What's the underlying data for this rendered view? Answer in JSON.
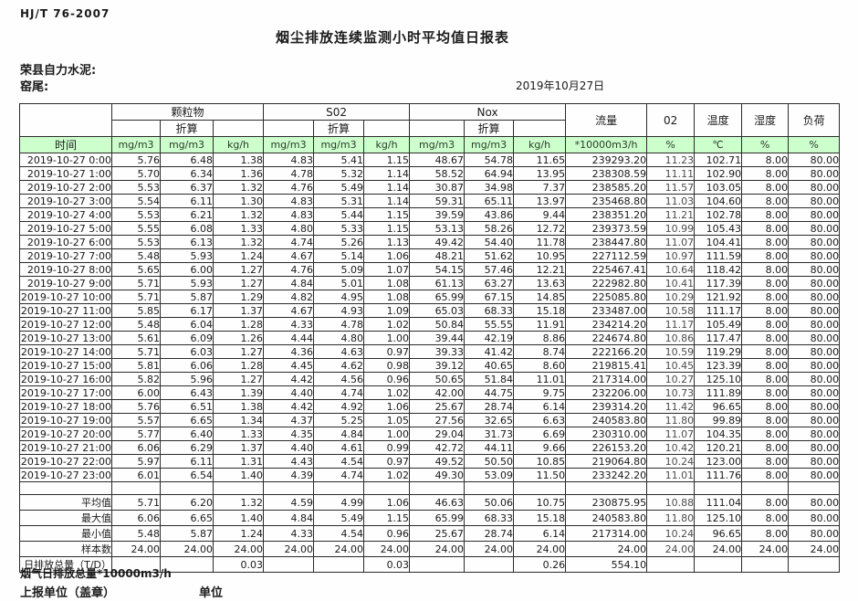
{
  "doc": {
    "standard": "HJ/T  76-2007",
    "title": "烟尘排放连续监测小时平均值日报表",
    "company": "荣县自力水泥:",
    "location": "窑尾:",
    "date": "2019年10月27日"
  },
  "table": {
    "header": {
      "time_label": "时间",
      "group_pm": "颗粒物",
      "group_so2": "S02",
      "group_nox": "Nox",
      "zhesuan_pm": "折算",
      "zhesuan_so2": "折算",
      "zhesuan_nox": "折算",
      "flow_label": "流量",
      "o2_label": "02",
      "temp_label": "温度",
      "humidity_label": "湿度",
      "load_label": "负荷",
      "units": [
        "mg/m3",
        "mg/m3",
        "kg/h",
        "mg/m3",
        "mg/m3",
        "kg/h",
        "mg/m3",
        "mg/m3",
        "kg/h",
        "*10000m3/h",
        "%",
        "℃",
        "%",
        "%"
      ]
    },
    "rows": [
      {
        "time": "2019-10-27  0:00",
        "values": [
          "5.76",
          "6.48",
          "1.38",
          "4.83",
          "5.41",
          "1.15",
          "48.67",
          "54.78",
          "11.65",
          "239293.20",
          "11.23",
          "102.71",
          "8.00",
          "80.00"
        ]
      },
      {
        "time": "2019-10-27  1:00",
        "values": [
          "5.70",
          "6.34",
          "1.36",
          "4.78",
          "5.32",
          "1.14",
          "58.52",
          "64.94",
          "13.95",
          "238308.59",
          "11.11",
          "102.90",
          "8.00",
          "80.00"
        ]
      },
      {
        "time": "2019-10-27  2:00",
        "values": [
          "5.53",
          "6.37",
          "1.32",
          "4.76",
          "5.49",
          "1.14",
          "30.87",
          "34.98",
          "7.37",
          "238585.20",
          "11.57",
          "103.05",
          "8.00",
          "80.00"
        ]
      },
      {
        "time": "2019-10-27  3:00",
        "values": [
          "5.54",
          "6.11",
          "1.30",
          "4.83",
          "5.31",
          "1.14",
          "59.31",
          "65.11",
          "13.97",
          "235468.80",
          "11.03",
          "104.60",
          "8.00",
          "80.00"
        ]
      },
      {
        "time": "2019-10-27  4:00",
        "values": [
          "5.53",
          "6.21",
          "1.32",
          "4.83",
          "5.44",
          "1.15",
          "39.59",
          "43.86",
          "9.44",
          "238351.20",
          "11.21",
          "102.78",
          "8.00",
          "80.00"
        ]
      },
      {
        "time": "2019-10-27  5:00",
        "values": [
          "5.55",
          "6.08",
          "1.33",
          "4.80",
          "5.33",
          "1.15",
          "53.13",
          "58.26",
          "12.72",
          "239373.59",
          "10.99",
          "105.43",
          "8.00",
          "80.00"
        ]
      },
      {
        "time": "2019-10-27  6:00",
        "values": [
          "5.53",
          "6.13",
          "1.32",
          "4.74",
          "5.26",
          "1.13",
          "49.42",
          "54.40",
          "11.78",
          "238447.80",
          "11.07",
          "104.41",
          "8.00",
          "80.00"
        ]
      },
      {
        "time": "2019-10-27  7:00",
        "values": [
          "5.48",
          "5.93",
          "1.24",
          "4.67",
          "5.14",
          "1.06",
          "48.21",
          "51.62",
          "10.95",
          "227112.59",
          "10.97",
          "111.59",
          "8.00",
          "80.00"
        ]
      },
      {
        "time": "2019-10-27  8:00",
        "values": [
          "5.65",
          "6.00",
          "1.27",
          "4.76",
          "5.09",
          "1.07",
          "54.15",
          "57.46",
          "12.21",
          "225467.41",
          "10.64",
          "118.42",
          "8.00",
          "80.00"
        ]
      },
      {
        "time": "2019-10-27  9:00",
        "values": [
          "5.71",
          "5.93",
          "1.27",
          "4.84",
          "5.01",
          "1.08",
          "61.13",
          "63.27",
          "13.63",
          "222982.80",
          "10.41",
          "117.39",
          "8.00",
          "80.00"
        ]
      },
      {
        "time": "2019-10-27 10:00",
        "values": [
          "5.71",
          "5.87",
          "1.29",
          "4.82",
          "4.95",
          "1.08",
          "65.99",
          "67.15",
          "14.85",
          "225085.80",
          "10.29",
          "121.92",
          "8.00",
          "80.00"
        ]
      },
      {
        "time": "2019-10-27 11:00",
        "values": [
          "5.85",
          "6.17",
          "1.37",
          "4.67",
          "4.93",
          "1.09",
          "65.03",
          "68.33",
          "15.18",
          "233487.00",
          "10.58",
          "111.17",
          "8.00",
          "80.00"
        ]
      },
      {
        "time": "2019-10-27 12:00",
        "values": [
          "5.48",
          "6.04",
          "1.28",
          "4.33",
          "4.78",
          "1.02",
          "50.84",
          "55.55",
          "11.91",
          "234214.20",
          "11.17",
          "105.49",
          "8.00",
          "80.00"
        ]
      },
      {
        "time": "2019-10-27 13:00",
        "values": [
          "5.61",
          "6.09",
          "1.26",
          "4.44",
          "4.80",
          "1.00",
          "39.44",
          "42.19",
          "8.86",
          "224674.80",
          "10.86",
          "117.47",
          "8.00",
          "80.00"
        ]
      },
      {
        "time": "2019-10-27 14:00",
        "values": [
          "5.71",
          "6.03",
          "1.27",
          "4.36",
          "4.63",
          "0.97",
          "39.33",
          "41.42",
          "8.74",
          "222166.20",
          "10.59",
          "119.29",
          "8.00",
          "80.00"
        ]
      },
      {
        "time": "2019-10-27 15:00",
        "values": [
          "5.81",
          "6.06",
          "1.28",
          "4.45",
          "4.62",
          "0.98",
          "39.12",
          "40.65",
          "8.60",
          "219815.41",
          "10.45",
          "123.39",
          "8.00",
          "80.00"
        ]
      },
      {
        "time": "2019-10-27 16:00",
        "values": [
          "5.82",
          "5.96",
          "1.27",
          "4.42",
          "4.56",
          "0.96",
          "50.65",
          "51.84",
          "11.01",
          "217314.00",
          "10.27",
          "125.10",
          "8.00",
          "80.00"
        ]
      },
      {
        "time": "2019-10-27 17:00",
        "values": [
          "6.00",
          "6.43",
          "1.39",
          "4.40",
          "4.74",
          "1.02",
          "42.00",
          "44.75",
          "9.75",
          "232206.00",
          "10.73",
          "111.89",
          "8.00",
          "80.00"
        ]
      },
      {
        "time": "2019-10-27 18:00",
        "values": [
          "5.76",
          "6.51",
          "1.38",
          "4.42",
          "4.92",
          "1.06",
          "25.67",
          "28.74",
          "6.14",
          "239314.20",
          "11.42",
          "96.65",
          "8.00",
          "80.00"
        ]
      },
      {
        "time": "2019-10-27 19:00",
        "values": [
          "5.57",
          "6.65",
          "1.34",
          "4.37",
          "5.25",
          "1.05",
          "27.56",
          "32.65",
          "6.63",
          "240583.80",
          "11.80",
          "99.89",
          "8.00",
          "80.00"
        ]
      },
      {
        "time": "2019-10-27 20:00",
        "values": [
          "5.77",
          "6.40",
          "1.33",
          "4.35",
          "4.84",
          "1.00",
          "29.04",
          "31.73",
          "6.69",
          "230310.00",
          "11.07",
          "104.35",
          "8.00",
          "80.00"
        ]
      },
      {
        "time": "2019-10-27 21:00",
        "values": [
          "6.06",
          "6.29",
          "1.37",
          "4.40",
          "4.61",
          "0.99",
          "42.72",
          "44.11",
          "9.66",
          "226153.20",
          "10.42",
          "120.21",
          "8.00",
          "80.00"
        ]
      },
      {
        "time": "2019-10-27 22:00",
        "values": [
          "5.97",
          "6.11",
          "1.31",
          "4.43",
          "4.54",
          "0.97",
          "49.52",
          "50.50",
          "10.85",
          "219064.80",
          "10.24",
          "123.00",
          "8.00",
          "80.00"
        ]
      },
      {
        "time": "2019-10-27 23:00",
        "values": [
          "6.01",
          "6.54",
          "1.40",
          "4.39",
          "4.74",
          "1.02",
          "49.30",
          "53.09",
          "11.50",
          "233242.20",
          "11.01",
          "111.76",
          "8.00",
          "80.00"
        ]
      }
    ],
    "summary": [
      {
        "label": "平均值",
        "values": [
          "5.71",
          "6.20",
          "1.32",
          "4.59",
          "4.99",
          "1.06",
          "46.63",
          "50.06",
          "10.75",
          "230875.95",
          "10.88",
          "111.04",
          "8.00",
          "80.00"
        ]
      },
      {
        "label": "最大值",
        "values": [
          "6.06",
          "6.65",
          "1.40",
          "4.84",
          "5.49",
          "1.15",
          "65.99",
          "68.33",
          "15.18",
          "240583.80",
          "11.80",
          "125.10",
          "8.00",
          "80.00"
        ]
      },
      {
        "label": "最小值",
        "values": [
          "5.48",
          "5.87",
          "1.24",
          "4.33",
          "4.54",
          "0.96",
          "25.67",
          "28.74",
          "6.14",
          "217314.00",
          "10.24",
          "96.65",
          "8.00",
          "80.00"
        ]
      },
      {
        "label": "样本数",
        "values": [
          "24.00",
          "24.00",
          "24.00",
          "24.00",
          "24.00",
          "24.00",
          "24.00",
          "24.00",
          "24.00",
          "24.00",
          "24.00",
          "24.00",
          "24.00",
          "24.00"
        ]
      },
      {
        "label": "日排放总量（T/D）",
        "values": [
          "",
          "",
          "0.03",
          "",
          "",
          "0.03",
          "",
          "",
          "0.26",
          "554.10",
          "",
          "",
          "",
          ""
        ]
      }
    ]
  },
  "footer": {
    "note": "烟气日排放总量*10000m3/h",
    "report_unit": "上报单位（盖章）",
    "unit": "单位"
  },
  "colors": {
    "header_green": "#ccffcc",
    "border": "#2b2b2b"
  }
}
